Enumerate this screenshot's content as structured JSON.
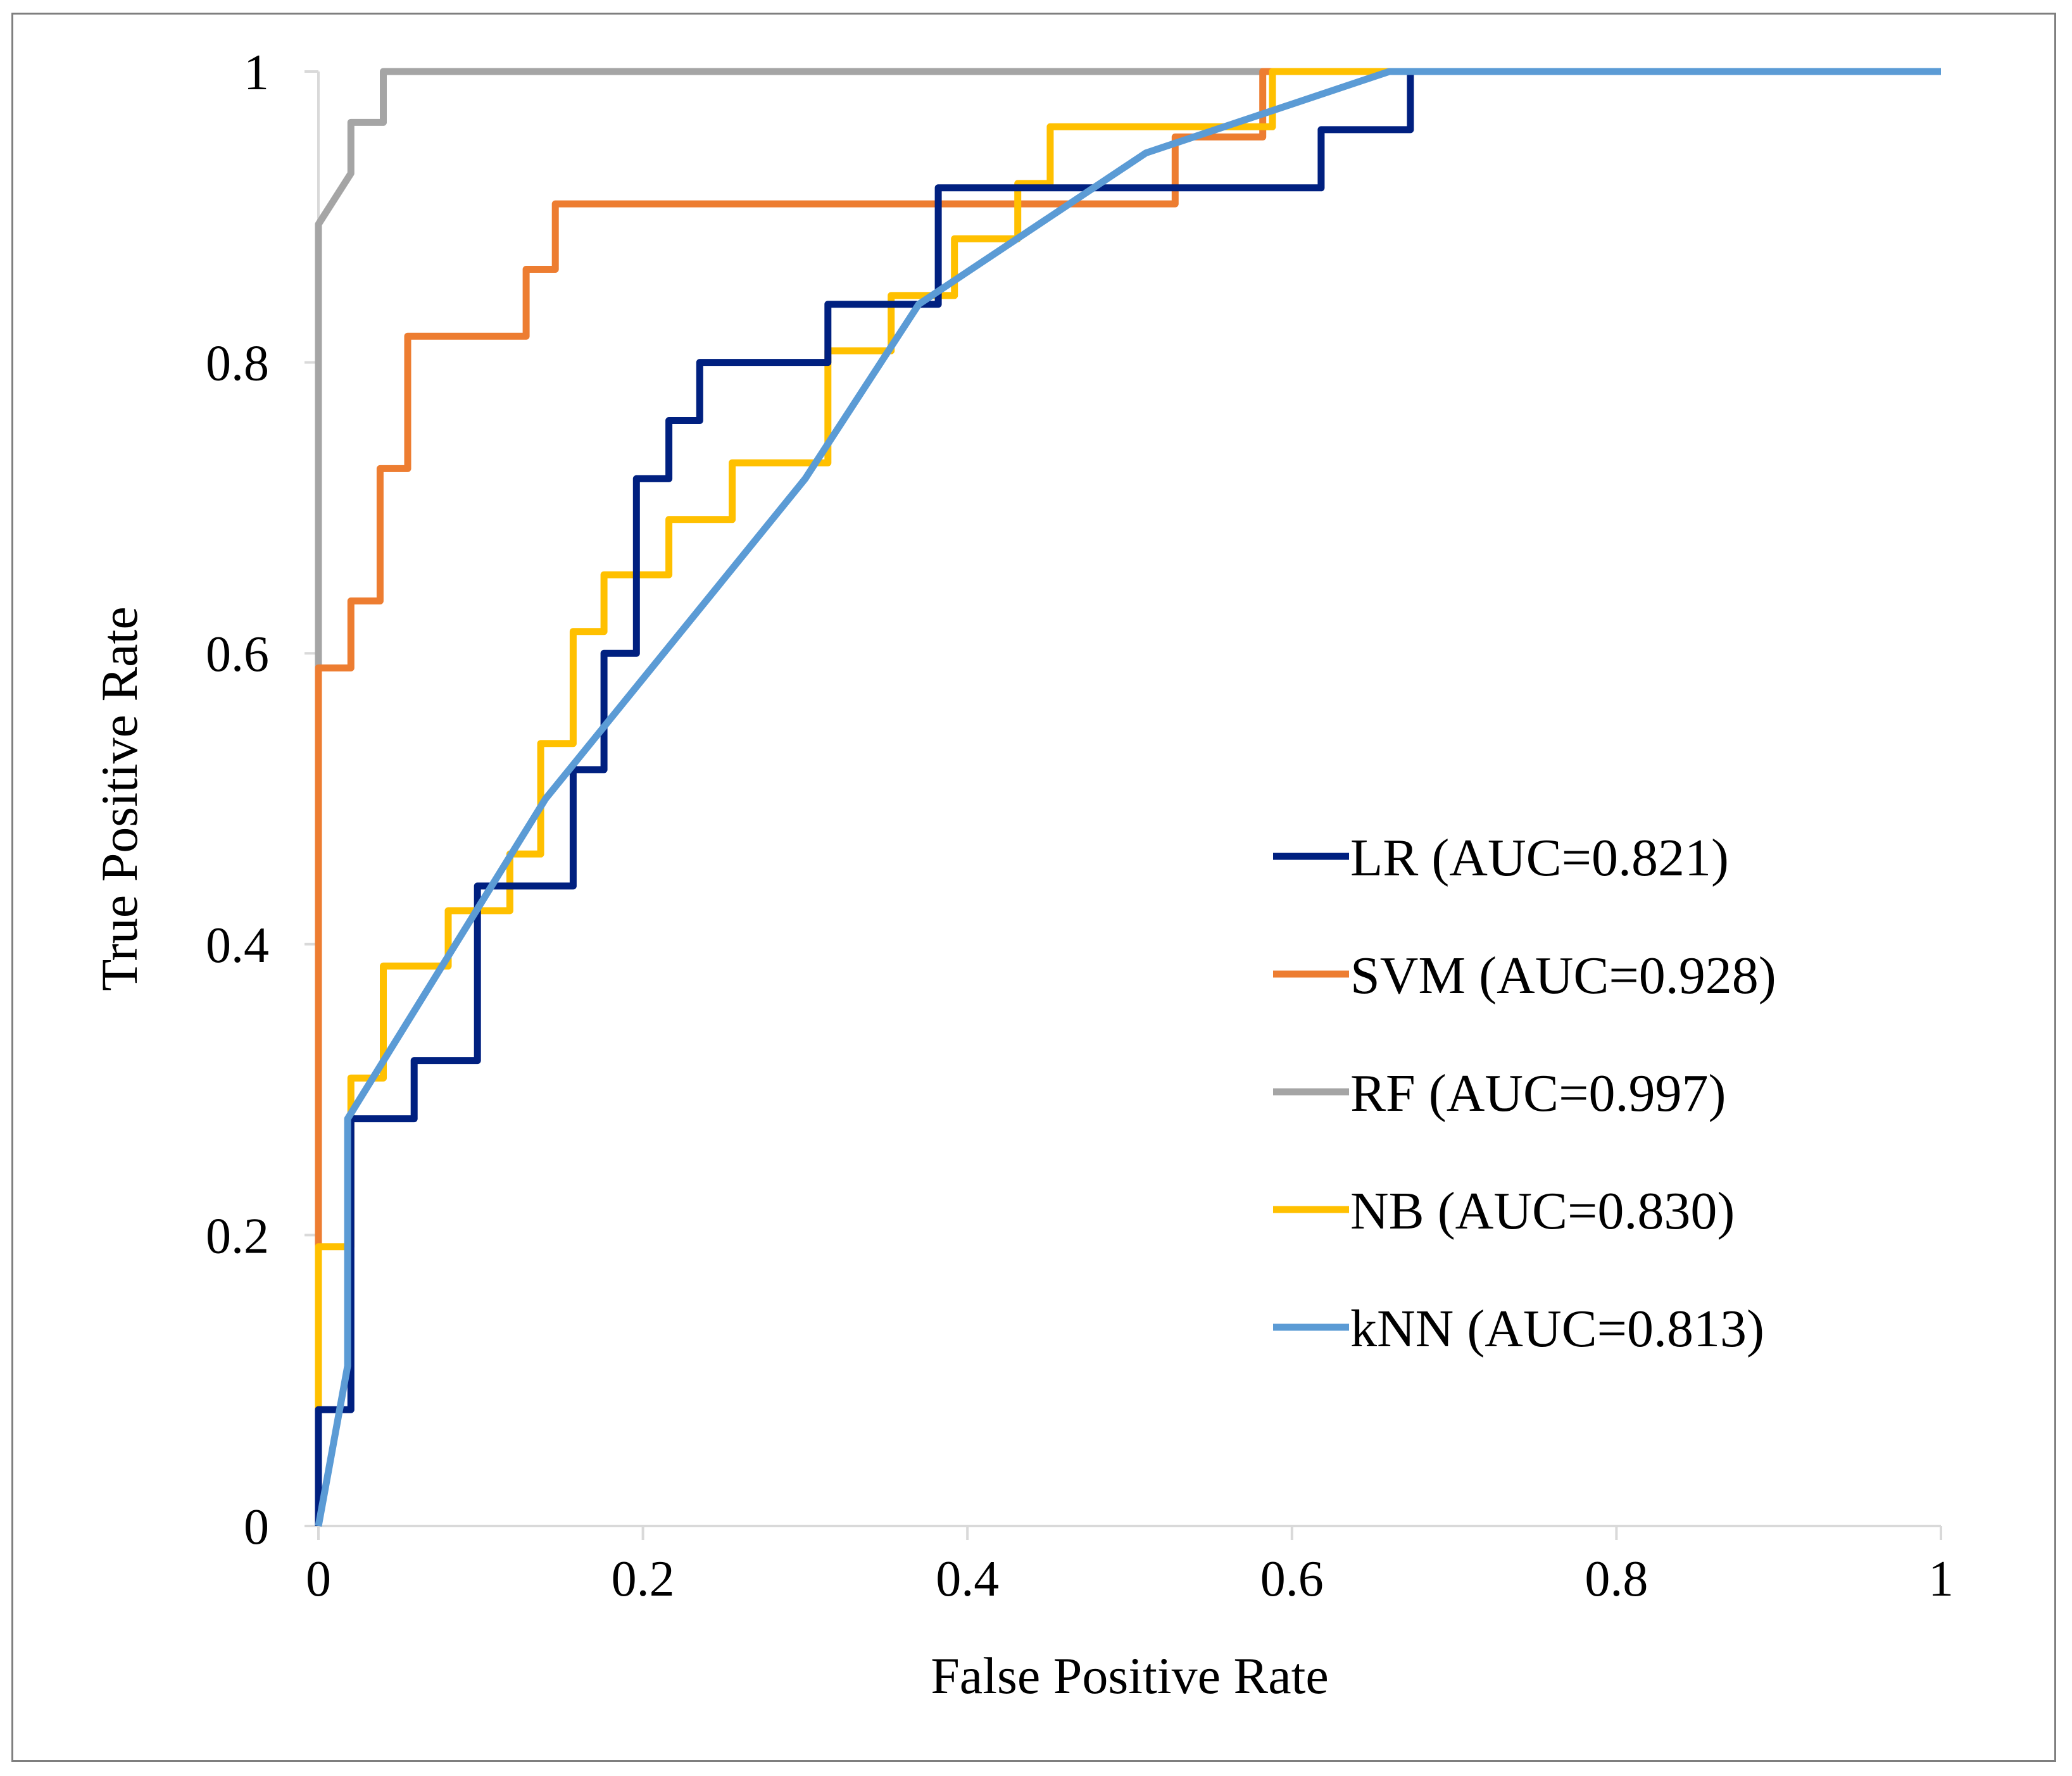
{
  "chart_data": {
    "type": "line",
    "title": "",
    "xlabel": "False Positive Rate",
    "ylabel": "True Positive Rate",
    "xlim": [
      0,
      1
    ],
    "ylim": [
      0,
      1
    ],
    "xticks": [
      "0",
      "0.2",
      "0.4",
      "0.6",
      "0.8",
      "1"
    ],
    "yticks": [
      "0",
      "0.2",
      "0.4",
      "0.6",
      "0.8",
      "1"
    ],
    "grid": false,
    "legend_position": "lower-right",
    "series": [
      {
        "name": "RF",
        "label": "RF (AUC=0.997)",
        "color": "#a5a5a5",
        "points": [
          [
            0,
            0
          ],
          [
            0,
            0.895
          ],
          [
            0.02,
            0.93
          ],
          [
            0.02,
            0.965
          ],
          [
            0.04,
            0.965
          ],
          [
            0.04,
            1
          ],
          [
            1,
            1
          ]
        ]
      },
      {
        "name": "SVM",
        "label": "SVM (AUC=0.928)",
        "color": "#ed7d31",
        "points": [
          [
            0,
            0
          ],
          [
            0,
            0.59
          ],
          [
            0.02,
            0.59
          ],
          [
            0.02,
            0.636
          ],
          [
            0.038,
            0.636
          ],
          [
            0.038,
            0.727
          ],
          [
            0.055,
            0.727
          ],
          [
            0.055,
            0.818
          ],
          [
            0.128,
            0.818
          ],
          [
            0.128,
            0.864
          ],
          [
            0.146,
            0.864
          ],
          [
            0.146,
            0.909
          ],
          [
            0.528,
            0.909
          ],
          [
            0.528,
            0.955
          ],
          [
            0.582,
            0.955
          ],
          [
            0.582,
            1
          ],
          [
            1,
            1
          ]
        ]
      },
      {
        "name": "NB",
        "label": "NB (AUC=0.830)",
        "color": "#ffc000",
        "points": [
          [
            0,
            0
          ],
          [
            0,
            0.192
          ],
          [
            0.02,
            0.192
          ],
          [
            0.02,
            0.308
          ],
          [
            0.04,
            0.308
          ],
          [
            0.04,
            0.385
          ],
          [
            0.08,
            0.385
          ],
          [
            0.08,
            0.423
          ],
          [
            0.118,
            0.423
          ],
          [
            0.118,
            0.462
          ],
          [
            0.137,
            0.462
          ],
          [
            0.137,
            0.538
          ],
          [
            0.157,
            0.538
          ],
          [
            0.157,
            0.615
          ],
          [
            0.176,
            0.615
          ],
          [
            0.176,
            0.654
          ],
          [
            0.216,
            0.654
          ],
          [
            0.216,
            0.692
          ],
          [
            0.255,
            0.692
          ],
          [
            0.255,
            0.731
          ],
          [
            0.314,
            0.731
          ],
          [
            0.314,
            0.808
          ],
          [
            0.353,
            0.808
          ],
          [
            0.353,
            0.846
          ],
          [
            0.392,
            0.846
          ],
          [
            0.392,
            0.885
          ],
          [
            0.431,
            0.885
          ],
          [
            0.431,
            0.923
          ],
          [
            0.451,
            0.923
          ],
          [
            0.451,
            0.962
          ],
          [
            0.588,
            0.962
          ],
          [
            0.588,
            1
          ],
          [
            1,
            1
          ]
        ]
      },
      {
        "name": "LR",
        "label": "LR (AUC=0.821)",
        "color": "#002080",
        "points": [
          [
            0,
            0
          ],
          [
            0,
            0.08
          ],
          [
            0.02,
            0.08
          ],
          [
            0.02,
            0.28
          ],
          [
            0.059,
            0.28
          ],
          [
            0.059,
            0.32
          ],
          [
            0.098,
            0.32
          ],
          [
            0.098,
            0.44
          ],
          [
            0.157,
            0.44
          ],
          [
            0.157,
            0.52
          ],
          [
            0.176,
            0.52
          ],
          [
            0.176,
            0.6
          ],
          [
            0.196,
            0.6
          ],
          [
            0.196,
            0.72
          ],
          [
            0.216,
            0.72
          ],
          [
            0.216,
            0.76
          ],
          [
            0.235,
            0.76
          ],
          [
            0.235,
            0.8
          ],
          [
            0.314,
            0.8
          ],
          [
            0.314,
            0.84
          ],
          [
            0.382,
            0.84
          ],
          [
            0.382,
            0.92
          ],
          [
            0.618,
            0.92
          ],
          [
            0.618,
            0.96
          ],
          [
            0.673,
            0.96
          ],
          [
            0.673,
            1
          ],
          [
            1,
            1
          ]
        ]
      },
      {
        "name": "kNN",
        "label": "kNN (AUC=0.813)",
        "color": "#5b9bd5",
        "points": [
          [
            0,
            0
          ],
          [
            0.018,
            0.11
          ],
          [
            0.018,
            0.28
          ],
          [
            0.14,
            0.5
          ],
          [
            0.3,
            0.72
          ],
          [
            0.37,
            0.84
          ],
          [
            0.51,
            0.944
          ],
          [
            0.66,
            1
          ],
          [
            1,
            1
          ]
        ]
      }
    ],
    "legend_order": [
      "LR",
      "SVM",
      "RF",
      "NB",
      "kNN"
    ]
  }
}
